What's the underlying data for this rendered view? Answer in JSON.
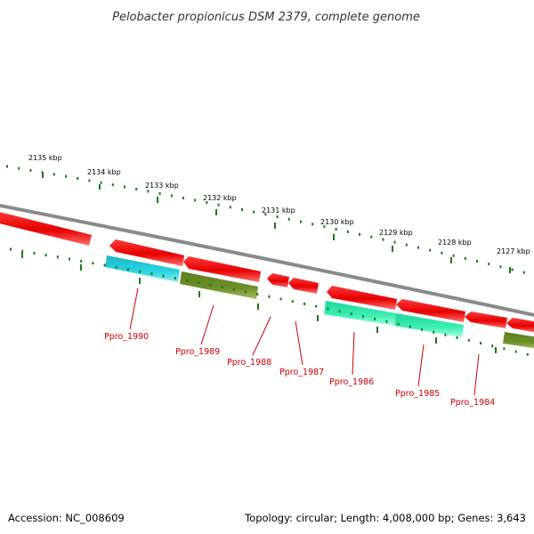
{
  "title": "Pelobacter propionicus DSM 2379, complete genome",
  "footer": {
    "accession": "Accession: NC_008609",
    "summary": "Topology: circular; Length: 4,008,000 bp; Genes: 3,643"
  },
  "ticks": [
    "2135 kbp",
    "2134 kbp",
    "2133 kbp",
    "2132 kbp",
    "2131 kbp",
    "2130 kbp",
    "2129 kbp",
    "2128 kbp",
    "2127 kbp"
  ],
  "gene_labels": [
    "Ppro_1990",
    "Ppro_1989",
    "Ppro_1988",
    "Ppro_1987",
    "Ppro_1986",
    "Ppro_1985",
    "Ppro_1984"
  ],
  "colors": {
    "backbone": "#8a8a8a",
    "strand_feature": "#ff1a1a",
    "cds_cyan": "#22cccc",
    "cds_olive": "#6b8e23",
    "cds_green": "#33e6a6",
    "tick": "#1a7a1a",
    "label": "#cc0000"
  }
}
